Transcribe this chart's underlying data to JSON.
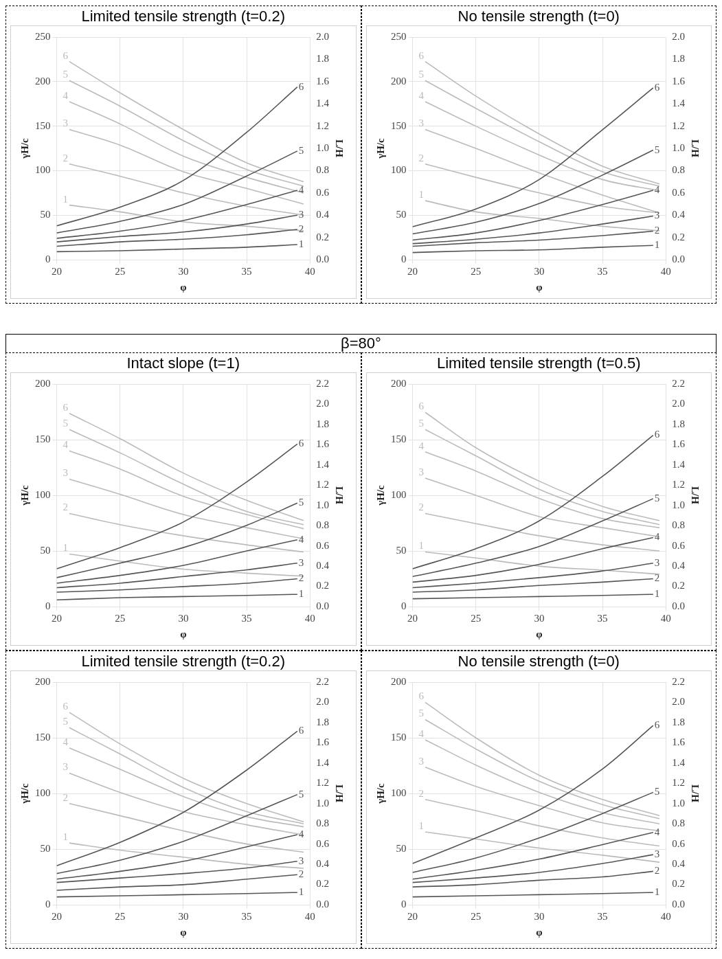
{
  "chart_data": [
    {
      "type": "line",
      "title": "Limited tensile strength (t=0.2)",
      "xlabel": "φ",
      "ylabel": "γH/c",
      "y2label": "L/H",
      "xlim": [
        20,
        40
      ],
      "xticks": [
        20,
        25,
        30,
        35,
        40
      ],
      "ylim": [
        0,
        250
      ],
      "yticks": [
        0,
        50,
        100,
        150,
        200,
        250
      ],
      "y2lim": [
        0,
        2
      ],
      "y2ticks": [
        {
          "value": 0,
          "label": "0.0"
        },
        {
          "value": 0.2,
          "label": "0.2"
        },
        {
          "value": 0.4,
          "label": "0.4"
        },
        {
          "value": 0.6,
          "label": "0.6"
        },
        {
          "value": 0.8,
          "label": "0.8"
        },
        {
          "value": 1,
          "label": "1.0"
        },
        {
          "value": 1.2,
          "label": "1.2"
        },
        {
          "value": 1.4,
          "label": "1.4"
        },
        {
          "value": 1.6,
          "label": "1.6"
        },
        {
          "value": 1.8,
          "label": "1.8"
        },
        {
          "value": 2,
          "label": "2.0"
        }
      ],
      "grid": true,
      "series": [
        {
          "name": "6",
          "color": "#555555",
          "axis": "y",
          "x": [
            20,
            25,
            30,
            35,
            39
          ],
          "values": [
            38,
            59,
            89,
            143,
            194
          ]
        },
        {
          "name": "5",
          "color": "#555555",
          "axis": "y",
          "x": [
            20,
            25,
            30,
            35,
            39
          ],
          "values": [
            30,
            43,
            62,
            94,
            122
          ]
        },
        {
          "name": "4",
          "color": "#555555",
          "axis": "y",
          "x": [
            20,
            25,
            30,
            35,
            39
          ],
          "values": [
            24,
            32,
            44,
            62,
            78
          ]
        },
        {
          "name": "3",
          "color": "#555555",
          "axis": "y",
          "x": [
            20,
            25,
            30,
            35,
            39
          ],
          "values": [
            20,
            26,
            31,
            40,
            50
          ]
        },
        {
          "name": "2",
          "color": "#555555",
          "axis": "y",
          "x": [
            20,
            25,
            30,
            35,
            39
          ],
          "values": [
            15,
            20,
            23,
            28,
            34
          ]
        },
        {
          "name": "1",
          "color": "#555555",
          "axis": "y",
          "x": [
            20,
            25,
            30,
            35,
            39
          ],
          "values": [
            9,
            10,
            12,
            14,
            17
          ]
        },
        {
          "name": "6",
          "color": "#bbbbbb",
          "axis": "y2",
          "x": [
            21,
            25,
            30,
            35,
            39.5
          ],
          "values": [
            1.78,
            1.5,
            1.17,
            0.87,
            0.7
          ]
        },
        {
          "name": "5",
          "color": "#bbbbbb",
          "axis": "y2",
          "x": [
            21,
            25,
            30,
            35,
            39.5
          ],
          "values": [
            1.61,
            1.38,
            1.07,
            0.81,
            0.66
          ]
        },
        {
          "name": "4",
          "color": "#bbbbbb",
          "axis": "y2",
          "x": [
            21,
            25,
            30,
            35,
            39.5
          ],
          "values": [
            1.42,
            1.22,
            0.93,
            0.74,
            0.6
          ]
        },
        {
          "name": "3",
          "color": "#bbbbbb",
          "axis": "y2",
          "x": [
            21,
            25,
            30,
            35,
            39.5
          ],
          "values": [
            1.17,
            1.03,
            0.79,
            0.64,
            0.5
          ]
        },
        {
          "name": "2",
          "color": "#bbbbbb",
          "axis": "y2",
          "x": [
            21,
            25,
            30,
            35,
            39.5
          ],
          "values": [
            0.86,
            0.75,
            0.6,
            0.48,
            0.4
          ]
        },
        {
          "name": "1",
          "color": "#bbbbbb",
          "axis": "y2",
          "x": [
            21,
            25,
            30,
            35,
            39.5
          ],
          "values": [
            0.49,
            0.43,
            0.34,
            0.3,
            0.26
          ]
        }
      ]
    },
    {
      "type": "line",
      "title": "No tensile strength (t=0)",
      "xlabel": "φ",
      "ylabel": "γH/c",
      "y2label": "L/H",
      "xlim": [
        20,
        40
      ],
      "xticks": [
        20,
        25,
        30,
        35,
        40
      ],
      "ylim": [
        0,
        250
      ],
      "yticks": [
        0,
        50,
        100,
        150,
        200,
        250
      ],
      "y2lim": [
        0,
        2
      ],
      "y2ticks": [
        {
          "value": 0,
          "label": "0.0"
        },
        {
          "value": 0.2,
          "label": "0.2"
        },
        {
          "value": 0.4,
          "label": "0.4"
        },
        {
          "value": 0.6,
          "label": "0.6"
        },
        {
          "value": 0.8,
          "label": "0.8"
        },
        {
          "value": 1,
          "label": "1.0"
        },
        {
          "value": 1.2,
          "label": "1.2"
        },
        {
          "value": 1.4,
          "label": "1.4"
        },
        {
          "value": 1.6,
          "label": "1.6"
        },
        {
          "value": 1.8,
          "label": "1.8"
        },
        {
          "value": 2,
          "label": "2.0"
        }
      ],
      "grid": true,
      "series": [
        {
          "name": "6",
          "color": "#555555",
          "axis": "y",
          "x": [
            20,
            25,
            30,
            35,
            39
          ],
          "values": [
            37,
            57,
            90,
            146,
            193
          ]
        },
        {
          "name": "5",
          "color": "#555555",
          "axis": "y",
          "x": [
            20,
            25,
            30,
            35,
            39
          ],
          "values": [
            29,
            42,
            63,
            95,
            123
          ]
        },
        {
          "name": "4",
          "color": "#555555",
          "axis": "y",
          "x": [
            20,
            25,
            30,
            35,
            39
          ],
          "values": [
            22,
            30,
            44,
            62,
            78
          ]
        },
        {
          "name": "3",
          "color": "#555555",
          "axis": "y",
          "x": [
            20,
            25,
            30,
            35,
            39
          ],
          "values": [
            18,
            23,
            30,
            40,
            49
          ]
        },
        {
          "name": "2",
          "color": "#555555",
          "axis": "y",
          "x": [
            20,
            25,
            30,
            35,
            39
          ],
          "values": [
            15,
            19,
            22,
            27,
            32
          ]
        },
        {
          "name": "1",
          "color": "#555555",
          "axis": "y",
          "x": [
            20,
            25,
            30,
            35,
            39
          ],
          "values": [
            8,
            10,
            11,
            14,
            16
          ]
        },
        {
          "name": "6",
          "color": "#bbbbbb",
          "axis": "y2",
          "x": [
            21,
            25,
            30,
            35,
            39.5
          ],
          "values": [
            1.78,
            1.47,
            1.13,
            0.84,
            0.68
          ]
        },
        {
          "name": "5",
          "color": "#bbbbbb",
          "axis": "y2",
          "x": [
            21,
            25,
            30,
            35,
            39.5
          ],
          "values": [
            1.61,
            1.36,
            1.06,
            0.79,
            0.66
          ]
        },
        {
          "name": "4",
          "color": "#bbbbbb",
          "axis": "y2",
          "x": [
            21,
            25,
            30,
            35,
            39.5
          ],
          "values": [
            1.42,
            1.2,
            0.94,
            0.72,
            0.62
          ]
        },
        {
          "name": "3",
          "color": "#bbbbbb",
          "axis": "y2",
          "x": [
            21,
            25,
            30,
            35,
            39.5
          ],
          "values": [
            1.17,
            1,
            0.78,
            0.58,
            0.42
          ]
        },
        {
          "name": "2",
          "color": "#bbbbbb",
          "axis": "y2",
          "x": [
            21,
            25,
            30,
            35,
            39.5
          ],
          "values": [
            0.86,
            0.74,
            0.6,
            0.48,
            0.42
          ]
        },
        {
          "name": "1",
          "color": "#bbbbbb",
          "axis": "y2",
          "x": [
            21,
            25,
            30,
            35,
            39.5
          ],
          "values": [
            0.53,
            0.43,
            0.37,
            0.3,
            0.26
          ]
        }
      ]
    },
    {
      "type": "other",
      "title": "β=80°"
    },
    {
      "type": "line",
      "title": "Intact slope (t=1)",
      "xlabel": "φ",
      "ylabel": "γH/c",
      "y2label": "L/H",
      "xlim": [
        20,
        40
      ],
      "xticks": [
        20,
        25,
        30,
        35,
        40
      ],
      "ylim": [
        0,
        200
      ],
      "yticks": [
        0,
        50,
        100,
        150,
        200
      ],
      "y2lim": [
        0,
        2.2
      ],
      "y2ticks": [
        {
          "value": 0,
          "label": "0.0"
        },
        {
          "value": 0.2,
          "label": "0.2"
        },
        {
          "value": 0.4,
          "label": "0.4"
        },
        {
          "value": 0.6,
          "label": "0.6"
        },
        {
          "value": 0.8,
          "label": "0.8"
        },
        {
          "value": 1,
          "label": "1.0"
        },
        {
          "value": 1.2,
          "label": "1.2"
        },
        {
          "value": 1.4,
          "label": "1.4"
        },
        {
          "value": 1.6,
          "label": "1.6"
        },
        {
          "value": 1.8,
          "label": "1.8"
        },
        {
          "value": 2,
          "label": "2.0"
        },
        {
          "value": 2.2,
          "label": "2.2"
        }
      ],
      "grid": true,
      "series": [
        {
          "name": "6",
          "color": "#555555",
          "axis": "y",
          "x": [
            20,
            25,
            30,
            35,
            39
          ],
          "values": [
            34,
            53,
            76,
            112,
            146
          ]
        },
        {
          "name": "5",
          "color": "#555555",
          "axis": "y",
          "x": [
            20,
            25,
            30,
            35,
            39
          ],
          "values": [
            26,
            39,
            53,
            73,
            93
          ]
        },
        {
          "name": "4",
          "color": "#555555",
          "axis": "y",
          "x": [
            20,
            25,
            30,
            35,
            39
          ],
          "values": [
            21,
            28,
            37,
            50,
            60
          ]
        },
        {
          "name": "3",
          "color": "#555555",
          "axis": "y",
          "x": [
            20,
            25,
            30,
            35,
            39
          ],
          "values": [
            17,
            21,
            27,
            33,
            39
          ]
        },
        {
          "name": "2",
          "color": "#555555",
          "axis": "y",
          "x": [
            20,
            25,
            30,
            35,
            39
          ],
          "values": [
            13,
            15,
            18,
            21,
            25
          ]
        },
        {
          "name": "1",
          "color": "#555555",
          "axis": "y",
          "x": [
            20,
            25,
            30,
            35,
            39
          ],
          "values": [
            6,
            8,
            9,
            10,
            11
          ]
        },
        {
          "name": "6",
          "color": "#bbbbbb",
          "axis": "y2",
          "x": [
            21,
            25,
            30,
            35,
            39.5
          ],
          "values": [
            1.91,
            1.66,
            1.32,
            1.05,
            0.85
          ]
        },
        {
          "name": "5",
          "color": "#bbbbbb",
          "axis": "y2",
          "x": [
            21,
            25,
            30,
            35,
            39.5
          ],
          "values": [
            1.75,
            1.52,
            1.21,
            0.94,
            0.81
          ]
        },
        {
          "name": "4",
          "color": "#bbbbbb",
          "axis": "y2",
          "x": [
            21,
            25,
            30,
            35,
            39.5
          ],
          "values": [
            1.54,
            1.36,
            1.09,
            0.91,
            0.77
          ]
        },
        {
          "name": "3",
          "color": "#bbbbbb",
          "axis": "y2",
          "x": [
            21,
            25,
            30,
            35,
            39.5
          ],
          "values": [
            1.26,
            1.11,
            0.91,
            0.78,
            0.67
          ]
        },
        {
          "name": "2",
          "color": "#bbbbbb",
          "axis": "y2",
          "x": [
            21,
            25,
            30,
            35,
            39.5
          ],
          "values": [
            0.92,
            0.81,
            0.7,
            0.61,
            0.54
          ]
        },
        {
          "name": "1",
          "color": "#bbbbbb",
          "axis": "y2",
          "x": [
            21,
            25,
            30,
            35,
            39.5
          ],
          "values": [
            0.52,
            0.45,
            0.37,
            0.33,
            0.3
          ]
        }
      ]
    },
    {
      "type": "line",
      "title": "Limited tensile strength (t=0.5)",
      "xlabel": "φ",
      "ylabel": "γH/c",
      "y2label": "L/H",
      "xlim": [
        20,
        40
      ],
      "xticks": [
        20,
        25,
        30,
        35,
        40
      ],
      "ylim": [
        0,
        200
      ],
      "yticks": [
        0,
        50,
        100,
        150,
        200
      ],
      "y2lim": [
        0,
        2.2
      ],
      "y2ticks": [
        {
          "value": 0,
          "label": "0.0"
        },
        {
          "value": 0.2,
          "label": "0.2"
        },
        {
          "value": 0.4,
          "label": "0.4"
        },
        {
          "value": 0.6,
          "label": "0.6"
        },
        {
          "value": 0.8,
          "label": "0.8"
        },
        {
          "value": 1,
          "label": "1.0"
        },
        {
          "value": 1.2,
          "label": "1.2"
        },
        {
          "value": 1.4,
          "label": "1.4"
        },
        {
          "value": 1.6,
          "label": "1.6"
        },
        {
          "value": 1.8,
          "label": "1.8"
        },
        {
          "value": 2,
          "label": "2.0"
        },
        {
          "value": 2.2,
          "label": "2.2"
        }
      ],
      "grid": true,
      "series": [
        {
          "name": "6",
          "color": "#555555",
          "axis": "y",
          "x": [
            20,
            25,
            30,
            35,
            39
          ],
          "values": [
            34,
            52,
            77,
            117,
            154
          ]
        },
        {
          "name": "5",
          "color": "#555555",
          "axis": "y",
          "x": [
            20,
            25,
            30,
            35,
            39
          ],
          "values": [
            27,
            39,
            54,
            77,
            97
          ]
        },
        {
          "name": "4",
          "color": "#555555",
          "axis": "y",
          "x": [
            20,
            25,
            30,
            35,
            39
          ],
          "values": [
            22,
            28,
            38,
            52,
            62
          ]
        },
        {
          "name": "3",
          "color": "#555555",
          "axis": "y",
          "x": [
            20,
            25,
            30,
            35,
            39
          ],
          "values": [
            17,
            21,
            26,
            32,
            39
          ]
        },
        {
          "name": "2",
          "color": "#555555",
          "axis": "y",
          "x": [
            20,
            25,
            30,
            35,
            39
          ],
          "values": [
            13,
            15,
            19,
            22,
            25
          ]
        },
        {
          "name": "1",
          "color": "#555555",
          "axis": "y",
          "x": [
            20,
            25,
            30,
            35,
            39
          ],
          "values": [
            7,
            8,
            9,
            10,
            11
          ]
        },
        {
          "name": "6",
          "color": "#bbbbbb",
          "axis": "y2",
          "x": [
            21,
            25,
            30,
            35,
            39.5
          ],
          "values": [
            1.92,
            1.57,
            1.24,
            0.99,
            0.85
          ]
        },
        {
          "name": "5",
          "color": "#bbbbbb",
          "axis": "y2",
          "x": [
            21,
            25,
            30,
            35,
            39.5
          ],
          "values": [
            1.75,
            1.49,
            1.16,
            0.94,
            0.81
          ]
        },
        {
          "name": "4",
          "color": "#bbbbbb",
          "axis": "y2",
          "x": [
            21,
            25,
            30,
            35,
            39.5
          ],
          "values": [
            1.53,
            1.34,
            1.07,
            0.87,
            0.78
          ]
        },
        {
          "name": "3",
          "color": "#bbbbbb",
          "axis": "y2",
          "x": [
            21,
            25,
            30,
            35,
            39.5
          ],
          "values": [
            1.27,
            1.1,
            0.89,
            0.78,
            0.69
          ]
        },
        {
          "name": "2",
          "color": "#bbbbbb",
          "axis": "y2",
          "x": [
            21,
            25,
            30,
            35,
            39.5
          ],
          "values": [
            0.92,
            0.82,
            0.7,
            0.61,
            0.55
          ]
        },
        {
          "name": "1",
          "color": "#bbbbbb",
          "axis": "y2",
          "x": [
            21,
            25,
            30,
            35,
            39.5
          ],
          "values": [
            0.54,
            0.48,
            0.4,
            0.36,
            0.32
          ]
        }
      ]
    },
    {
      "type": "line",
      "title": "Limited tensile strength (t=0.2)",
      "xlabel": "φ",
      "ylabel": "γH/c",
      "y2label": "L/H",
      "xlim": [
        20,
        40
      ],
      "xticks": [
        20,
        25,
        30,
        35,
        40
      ],
      "ylim": [
        0,
        200
      ],
      "yticks": [
        0,
        50,
        100,
        150,
        200
      ],
      "y2lim": [
        0,
        2.2
      ],
      "y2ticks": [
        {
          "value": 0,
          "label": "0.0"
        },
        {
          "value": 0.2,
          "label": "0.2"
        },
        {
          "value": 0.4,
          "label": "0.4"
        },
        {
          "value": 0.6,
          "label": "0.6"
        },
        {
          "value": 0.8,
          "label": "0.8"
        },
        {
          "value": 1,
          "label": "1.0"
        },
        {
          "value": 1.2,
          "label": "1.2"
        },
        {
          "value": 1.4,
          "label": "1.4"
        },
        {
          "value": 1.6,
          "label": "1.6"
        },
        {
          "value": 1.8,
          "label": "1.8"
        },
        {
          "value": 2,
          "label": "2.0"
        },
        {
          "value": 2.2,
          "label": "2.2"
        }
      ],
      "grid": true,
      "series": [
        {
          "name": "6",
          "color": "#555555",
          "axis": "y",
          "x": [
            20,
            25,
            30,
            35,
            39
          ],
          "values": [
            35,
            56,
            83,
            121,
            156
          ]
        },
        {
          "name": "5",
          "color": "#555555",
          "axis": "y",
          "x": [
            20,
            25,
            30,
            35,
            39
          ],
          "values": [
            28,
            40,
            57,
            80,
            99
          ]
        },
        {
          "name": "4",
          "color": "#555555",
          "axis": "y",
          "x": [
            20,
            25,
            30,
            35,
            39
          ],
          "values": [
            23,
            30,
            39,
            52,
            63
          ]
        },
        {
          "name": "3",
          "color": "#555555",
          "axis": "y",
          "x": [
            20,
            25,
            30,
            35,
            39
          ],
          "values": [
            20,
            24,
            28,
            33,
            39
          ]
        },
        {
          "name": "2",
          "color": "#555555",
          "axis": "y",
          "x": [
            20,
            25,
            30,
            35,
            39
          ],
          "values": [
            13,
            16,
            18,
            23,
            27
          ]
        },
        {
          "name": "1",
          "color": "#555555",
          "axis": "y",
          "x": [
            20,
            25,
            30,
            35,
            39
          ],
          "values": [
            7,
            8,
            9,
            10,
            11
          ]
        },
        {
          "name": "6",
          "color": "#bbbbbb",
          "axis": "y2",
          "x": [
            21,
            25,
            30,
            35,
            39.5
          ],
          "values": [
            1.9,
            1.59,
            1.25,
            1,
            0.82
          ]
        },
        {
          "name": "5",
          "color": "#bbbbbb",
          "axis": "y2",
          "x": [
            21,
            25,
            30,
            35,
            39.5
          ],
          "values": [
            1.75,
            1.49,
            1.16,
            0.92,
            0.8
          ]
        },
        {
          "name": "4",
          "color": "#bbbbbb",
          "axis": "y2",
          "x": [
            21,
            25,
            30,
            35,
            39.5
          ],
          "values": [
            1.55,
            1.34,
            1.07,
            0.87,
            0.77
          ]
        },
        {
          "name": "3",
          "color": "#bbbbbb",
          "axis": "y2",
          "x": [
            21,
            25,
            30,
            35,
            39.5
          ],
          "values": [
            1.3,
            1.11,
            0.92,
            0.79,
            0.69
          ]
        },
        {
          "name": "2",
          "color": "#bbbbbb",
          "axis": "y2",
          "x": [
            21,
            25,
            30,
            35,
            39.5
          ],
          "values": [
            1,
            0.88,
            0.73,
            0.6,
            0.52
          ]
        },
        {
          "name": "1",
          "color": "#bbbbbb",
          "axis": "y2",
          "x": [
            21,
            25,
            30,
            35,
            39.5
          ],
          "values": [
            0.61,
            0.54,
            0.47,
            0.4,
            0.36
          ]
        }
      ]
    },
    {
      "type": "line",
      "title": "No tensile strength (t=0)",
      "xlabel": "φ",
      "ylabel": "γH/c",
      "y2label": "L/H",
      "xlim": [
        20,
        40
      ],
      "xticks": [
        20,
        25,
        30,
        35,
        40
      ],
      "ylim": [
        0,
        200
      ],
      "yticks": [
        0,
        50,
        100,
        150,
        200
      ],
      "y2lim": [
        0,
        2.2
      ],
      "y2ticks": [
        {
          "value": 0,
          "label": "0.0"
        },
        {
          "value": 0.2,
          "label": "0.2"
        },
        {
          "value": 0.4,
          "label": "0.4"
        },
        {
          "value": 0.6,
          "label": "0.6"
        },
        {
          "value": 0.8,
          "label": "0.8"
        },
        {
          "value": 1,
          "label": "1.0"
        },
        {
          "value": 1.2,
          "label": "1.2"
        },
        {
          "value": 1.4,
          "label": "1.4"
        },
        {
          "value": 1.6,
          "label": "1.6"
        },
        {
          "value": 1.8,
          "label": "1.8"
        },
        {
          "value": 2,
          "label": "2.0"
        },
        {
          "value": 2.2,
          "label": "2.2"
        }
      ],
      "grid": true,
      "series": [
        {
          "name": "6",
          "color": "#555555",
          "axis": "y",
          "x": [
            20,
            25,
            30,
            35,
            39
          ],
          "values": [
            37,
            60,
            85,
            122,
            161
          ]
        },
        {
          "name": "5",
          "color": "#555555",
          "axis": "y",
          "x": [
            20,
            25,
            30,
            35,
            39
          ],
          "values": [
            29,
            42,
            60,
            82,
            101
          ]
        },
        {
          "name": "4",
          "color": "#555555",
          "axis": "y",
          "x": [
            20,
            25,
            30,
            35,
            39
          ],
          "values": [
            23,
            31,
            41,
            54,
            65
          ]
        },
        {
          "name": "3",
          "color": "#555555",
          "axis": "y",
          "x": [
            20,
            25,
            30,
            35,
            39
          ],
          "values": [
            20,
            24,
            29,
            37,
            45
          ]
        },
        {
          "name": "2",
          "color": "#555555",
          "axis": "y",
          "x": [
            20,
            25,
            30,
            35,
            39
          ],
          "values": [
            16,
            18,
            22,
            25,
            30
          ]
        },
        {
          "name": "1",
          "color": "#555555",
          "axis": "y",
          "x": [
            20,
            25,
            30,
            35,
            39
          ],
          "values": [
            7,
            8,
            9,
            10,
            11
          ]
        },
        {
          "name": "6",
          "color": "#bbbbbb",
          "axis": "y2",
          "x": [
            21,
            25,
            30,
            35,
            39.5
          ],
          "values": [
            2,
            1.65,
            1.28,
            1.04,
            0.88
          ]
        },
        {
          "name": "5",
          "color": "#bbbbbb",
          "axis": "y2",
          "x": [
            21,
            25,
            30,
            35,
            39.5
          ],
          "values": [
            1.83,
            1.54,
            1.22,
            0.99,
            0.85
          ]
        },
        {
          "name": "4",
          "color": "#bbbbbb",
          "axis": "y2",
          "x": [
            21,
            25,
            30,
            35,
            39.5
          ],
          "values": [
            1.63,
            1.38,
            1.11,
            0.91,
            0.8
          ]
        },
        {
          "name": "3",
          "color": "#bbbbbb",
          "axis": "y2",
          "x": [
            21,
            25,
            30,
            35,
            39.5
          ],
          "values": [
            1.36,
            1.17,
            0.98,
            0.81,
            0.73
          ]
        },
        {
          "name": "2",
          "color": "#bbbbbb",
          "axis": "y2",
          "x": [
            21,
            25,
            30,
            35,
            39.5
          ],
          "values": [
            1.04,
            0.93,
            0.78,
            0.66,
            0.58
          ]
        },
        {
          "name": "1",
          "color": "#bbbbbb",
          "axis": "y2",
          "x": [
            21,
            25,
            30,
            35,
            39.5
          ],
          "values": [
            0.72,
            0.65,
            0.56,
            0.49,
            0.42
          ]
        }
      ]
    }
  ]
}
